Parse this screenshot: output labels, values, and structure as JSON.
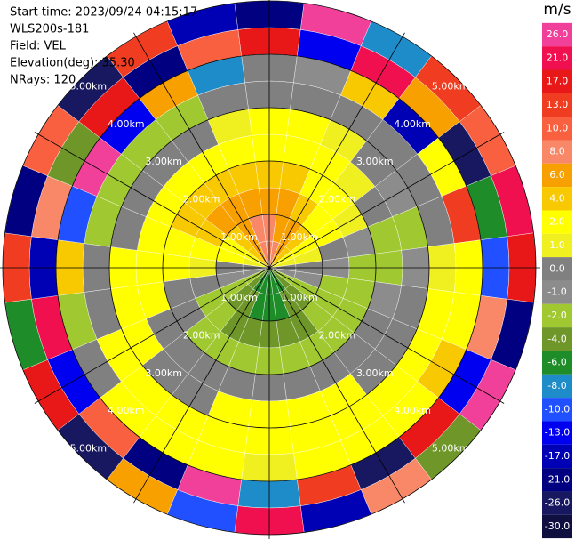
{
  "chart_data": {
    "type": "ppi",
    "annotations": [
      "Start time: 2023/09/24 04:15:17",
      "WLS200s-181",
      "Field: VEL",
      "Elevation(deg): 35.30",
      "NRays: 120"
    ],
    "rlim": [
      0,
      5
    ],
    "rings": [
      {
        "value": 1,
        "label": "1.00km"
      },
      {
        "value": 2,
        "label": "2.00km"
      },
      {
        "value": 3,
        "label": "3.00km"
      },
      {
        "value": 4,
        "label": "4.00km"
      },
      {
        "value": 5,
        "label": "5.00km"
      }
    ],
    "azimuths": [
      0,
      15,
      30,
      45,
      60,
      75,
      90,
      105,
      120,
      135,
      150,
      165,
      180,
      195,
      210,
      225,
      240,
      255,
      270,
      285,
      300,
      315,
      330,
      345
    ],
    "range_edges": [
      0,
      0.5,
      1,
      1.5,
      2,
      2.5,
      3,
      3.5,
      4,
      4.5,
      5
    ],
    "field": [
      [
        8,
        8,
        6,
        4,
        2,
        2,
        0,
        0,
        17,
        -21
      ],
      [
        8,
        6,
        6,
        4,
        2,
        2,
        0,
        -1,
        -13,
        26
      ],
      [
        6,
        6,
        4,
        2,
        2,
        1,
        0,
        4,
        21,
        -8
      ],
      [
        4,
        4,
        2,
        2,
        1,
        0,
        0,
        -17,
        6,
        13
      ],
      [
        2,
        2,
        2,
        1,
        0,
        -1,
        0,
        2,
        -26,
        10
      ],
      [
        1,
        1,
        0,
        -1,
        -2,
        -2,
        0,
        13,
        -6,
        21
      ],
      [
        0,
        0,
        -1,
        -2,
        -2,
        -1,
        1,
        2,
        -10,
        17
      ],
      [
        -1,
        -1,
        -2,
        -2,
        -1,
        0,
        2,
        2,
        8,
        -21
      ],
      [
        -2,
        -2,
        -2,
        -2,
        0,
        0,
        2,
        4,
        -13,
        26
      ],
      [
        -4,
        -4,
        -2,
        -2,
        0,
        0,
        2,
        2,
        17,
        -4
      ],
      [
        -6,
        -4,
        -4,
        -2,
        0,
        2,
        2,
        2,
        -26,
        8
      ],
      [
        -6,
        -6,
        -4,
        -2,
        0,
        2,
        2,
        2,
        13,
        -17
      ],
      [
        -6,
        -6,
        -4,
        -2,
        0,
        2,
        2,
        1,
        -8,
        21
      ],
      [
        -6,
        -6,
        -4,
        -2,
        0,
        2,
        2,
        2,
        26,
        -10
      ],
      [
        -6,
        -4,
        -4,
        -2,
        0,
        0,
        2,
        2,
        -21,
        6
      ],
      [
        -4,
        -4,
        -2,
        -2,
        0,
        0,
        2,
        2,
        10,
        -26
      ],
      [
        -2,
        -2,
        -2,
        0,
        0,
        2,
        2,
        0,
        -13,
        17
      ],
      [
        -1,
        -1,
        0,
        0,
        2,
        2,
        0,
        -2,
        21,
        -6
      ],
      [
        0,
        0,
        1,
        2,
        2,
        2,
        0,
        4,
        -17,
        13
      ],
      [
        1,
        2,
        2,
        2,
        2,
        0,
        -2,
        -10,
        8,
        -21
      ],
      [
        2,
        2,
        4,
        4,
        2,
        0,
        -2,
        26,
        -4,
        10
      ],
      [
        4,
        4,
        6,
        4,
        2,
        0,
        -2,
        -13,
        17,
        -26
      ],
      [
        6,
        6,
        6,
        4,
        2,
        0,
        -2,
        6,
        -21,
        13
      ],
      [
        8,
        8,
        6,
        4,
        2,
        1,
        0,
        -8,
        10,
        -17
      ]
    ],
    "colorbar": {
      "title": "m/s",
      "ticks": [
        {
          "value": 26,
          "label": "26.0"
        },
        {
          "value": 21,
          "label": "21.0"
        },
        {
          "value": 17,
          "label": "17.0"
        },
        {
          "value": 13,
          "label": "13.0"
        },
        {
          "value": 10,
          "label": "10.0"
        },
        {
          "value": 8,
          "label": "8.0"
        },
        {
          "value": 6,
          "label": "6.0"
        },
        {
          "value": 4,
          "label": "4.0"
        },
        {
          "value": 2,
          "label": "2.0"
        },
        {
          "value": 1,
          "label": "1.0"
        },
        {
          "value": 0,
          "label": "0.0"
        },
        {
          "value": -1,
          "label": "-1.0"
        },
        {
          "value": -2,
          "label": "-2.0"
        },
        {
          "value": -4,
          "label": "-4.0"
        },
        {
          "value": -6,
          "label": "-6.0"
        },
        {
          "value": -8,
          "label": "-8.0"
        },
        {
          "value": -10,
          "label": "-10.0"
        },
        {
          "value": -13,
          "label": "-13.0"
        },
        {
          "value": -17,
          "label": "-17.0"
        },
        {
          "value": -21,
          "label": "-21.0"
        },
        {
          "value": -26,
          "label": "-26.0"
        },
        {
          "value": -30,
          "label": "-30.0"
        }
      ],
      "colors": [
        "#f0409a",
        "#f01050",
        "#e81818",
        "#f03c20",
        "#f86040",
        "#f88868",
        "#f8a000",
        "#f8c800",
        "#ffff00",
        "#f0f020",
        "#808080",
        "#8c8c8c",
        "#a0c830",
        "#6e9628",
        "#1e8c28",
        "#1e8cc8",
        "#2050ff",
        "#0000f0",
        "#0000b4",
        "#000080",
        "#181860",
        "#101040"
      ]
    }
  }
}
